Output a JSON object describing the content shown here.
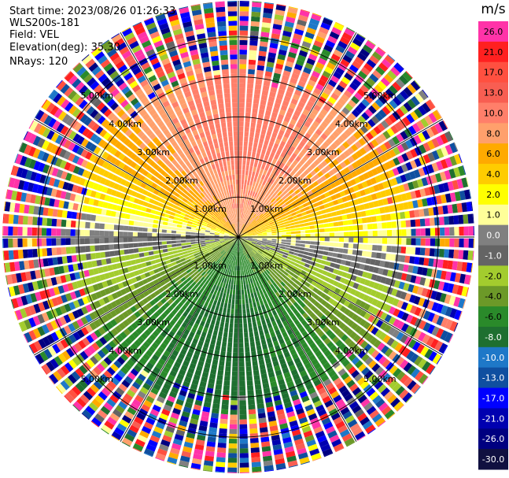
{
  "header": {
    "start_time_label": "Start time:",
    "start_time": "2023/08/26 01:26:33",
    "instrument": "WLS200s-181",
    "field_label": "Field:",
    "field": "VEL",
    "elevation_label": "Elevation(deg):",
    "elevation": "35.30",
    "nrays_label": "NRays:",
    "nrays": "120"
  },
  "chart_data": {
    "type": "heatmap",
    "projection": "polar PPI",
    "title": "",
    "colorbar_unit": "m/s",
    "colorbar_ticks": [
      "26.0",
      "21.0",
      "17.0",
      "13.0",
      "10.0",
      "8.0",
      "6.0",
      "4.0",
      "2.0",
      "1.0",
      "0.0",
      "-1.0",
      "-2.0",
      "-4.0",
      "-6.0",
      "-8.0",
      "-10.0",
      "-13.0",
      "-17.0",
      "-21.0",
      "-26.0",
      "-30.0"
    ],
    "colorbar_colors": [
      "#ff33a8",
      "#ff2020",
      "#ff5040",
      "#f85e52",
      "#ff7f6a",
      "#ffa06c",
      "#ffaa00",
      "#ffcc00",
      "#ffff00",
      "#ffff99",
      "#808080",
      "#646464",
      "#a3cc2e",
      "#6c9928",
      "#2a8a2a",
      "#1e6f30",
      "#1e78c8",
      "#0f4fa0",
      "#0000ff",
      "#0000b0",
      "#000080",
      "#101040"
    ],
    "ring_labels": [
      "1.00km",
      "2.00km",
      "3.00km",
      "4.00km",
      "5.00km"
    ],
    "rings_km": [
      1,
      2,
      3,
      4,
      5
    ],
    "max_range_km": 5.9,
    "nrays": 120,
    "spokes_deg": [
      0,
      30,
      60,
      90,
      120,
      150,
      180,
      210,
      240,
      270,
      300,
      330
    ],
    "velocity_pattern": {
      "toward_azimuth_deg": 5,
      "max_abs_velocity_ms": 9,
      "clear_air_noise_beyond_km": 4.4
    }
  }
}
